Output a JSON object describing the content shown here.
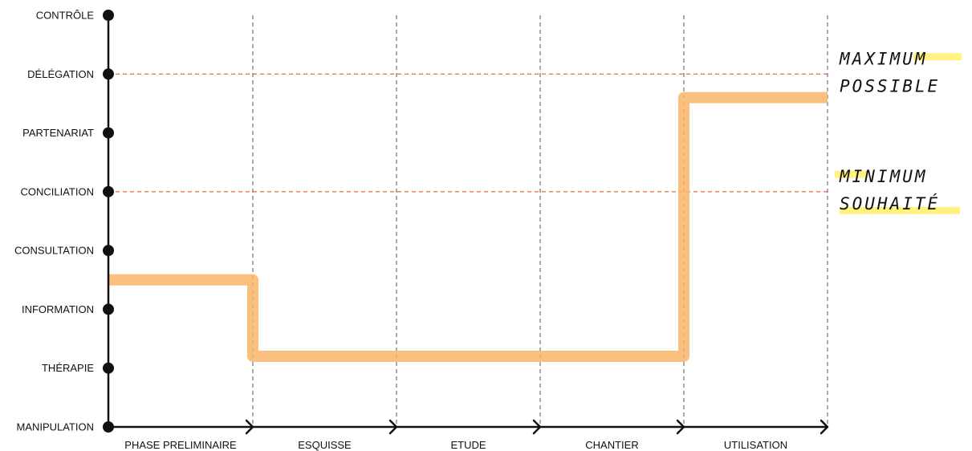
{
  "chart_data": {
    "type": "line",
    "y_levels": [
      "MANIPULATION",
      "THÉRAPIE",
      "INFORMATION",
      "CONSULTATION",
      "CONCILIATION",
      "PARTENARIAT",
      "DÉLÉGATION",
      "CONTRÔLE"
    ],
    "categories": [
      "PHASE PRELIMINAIRE",
      "ESQUISSE",
      "ETUDE",
      "CHANTIER",
      "UTILISATION"
    ],
    "series": [
      {
        "values": [
          2.5,
          1.2,
          1.2,
          1.2,
          5.6
        ],
        "color": "#f9b56a"
      }
    ],
    "reference_lines": [
      {
        "level": 6,
        "label_lines": [
          "MAXIMUM",
          "POSSIBLE"
        ],
        "color": "#e0683f"
      },
      {
        "level": 4,
        "label_lines": [
          "MINIMUM",
          "SOUHAITÉ"
        ],
        "color": "#e0683f"
      }
    ],
    "highlight_color": "#fff06a",
    "axis_color": "#111111",
    "phase_divider_color": "#555555"
  }
}
